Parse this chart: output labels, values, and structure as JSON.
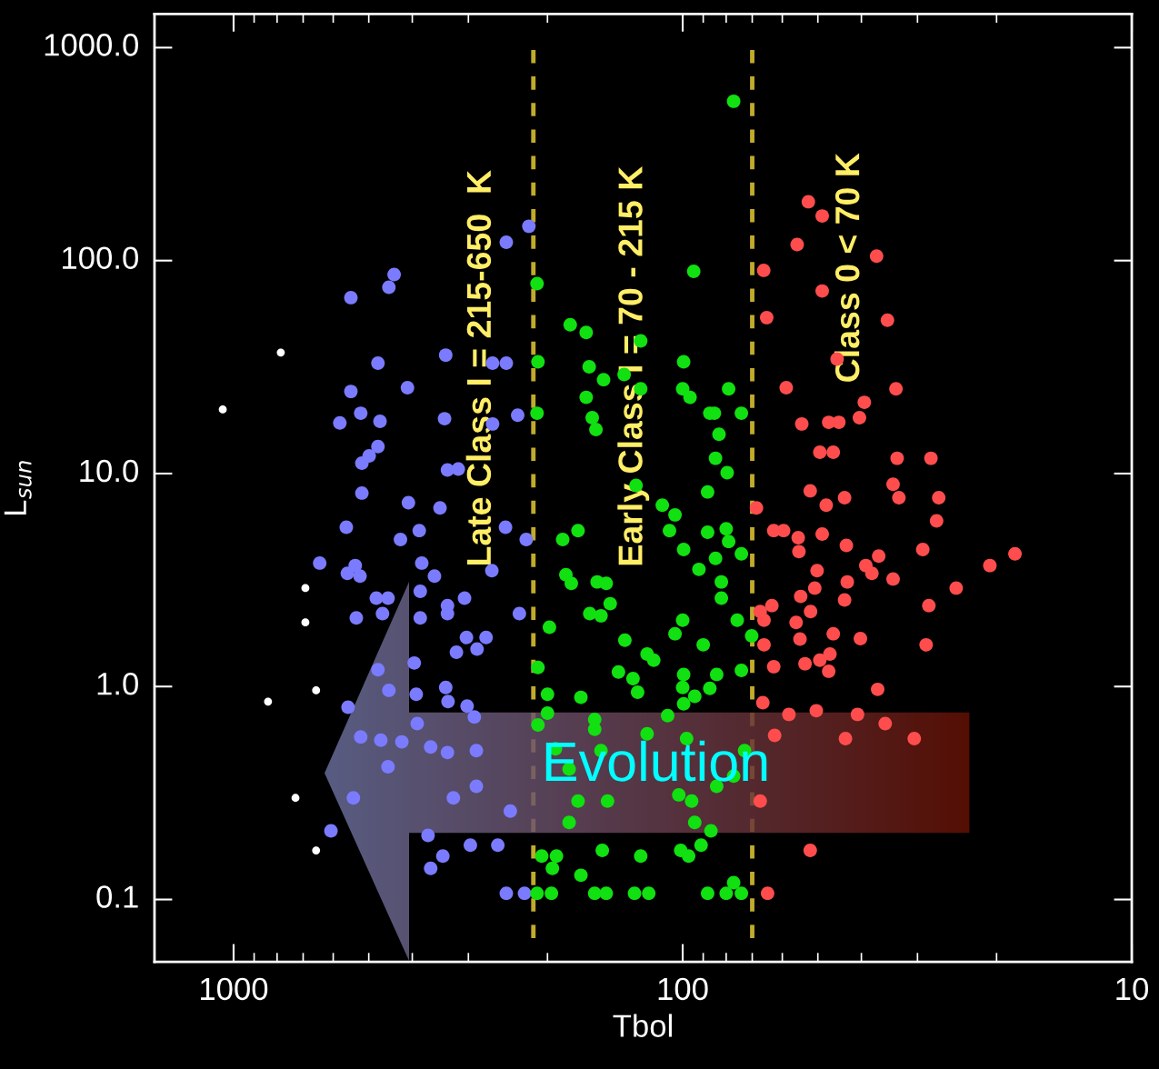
{
  "chart_data": {
    "type": "scatter",
    "xlabel": "Tbol",
    "ylabel": "L$_{sun}$",
    "log": "xy",
    "xlim": [
      1500,
      10
    ],
    "ylim": [
      0.051,
      1440
    ],
    "xticks": [
      1000,
      100,
      10
    ],
    "yticks": [
      {
        "value": 1000,
        "label": "1000.0"
      },
      {
        "value": 100,
        "label": "100.0"
      },
      {
        "value": 10,
        "label": "10.0"
      },
      {
        "value": 1,
        "label": "1.0"
      },
      {
        "value": 0.1,
        "label": "0.1"
      }
    ],
    "marker": "circle",
    "series": [
      {
        "color": "#ffffff",
        "x": [
          1057,
          785,
          692,
          692,
          655,
          838,
          728,
          655
        ],
        "values": [
          20,
          37,
          2.9,
          2.0,
          0.96,
          0.85,
          0.3,
          0.17
        ]
      },
      {
        "color": "#7b7bff",
        "x": [
          220,
          247,
          439,
          451,
          548,
          477,
          337,
          265,
          247,
          548,
          410,
          521,
          580,
          472,
          339,
          233,
          265,
          477,
          499,
          518,
          334,
          316,
          518,
          408,
          347,
          561,
          386,
          248,
          425,
          223,
          643,
          558,
          523,
          536,
          381,
          357,
          481,
          453,
          466,
          533,
          384,
          384,
          334,
          306,
          334,
          231,
          303,
          274,
          319,
          287,
          396,
          392,
          337,
          333,
          302,
          556,
          266,
          477,
          451,
          521,
          470,
          422,
          390,
          364,
          334,
          291,
          288,
          453,
          541,
          324,
          288,
          242,
          607,
          369,
          342,
          364,
          297,
          258,
          247,
          225
        ],
        "values": [
          145,
          122,
          86,
          75,
          67,
          33,
          36,
          33,
          33,
          24.3,
          25.3,
          19.2,
          17.3,
          17.6,
          18.1,
          18.8,
          17.1,
          13.4,
          12.1,
          11.2,
          10.4,
          10.5,
          8.1,
          7.3,
          6.9,
          5.6,
          5.4,
          5.6,
          4.9,
          4.9,
          3.8,
          3.4,
          3.3,
          3.7,
          3.8,
          3.3,
          2.6,
          2.6,
          2.2,
          2.1,
          2.8,
          2.1,
          2.4,
          2.6,
          2.2,
          2.2,
          1.7,
          1.7,
          1.45,
          1.5,
          1.29,
          0.92,
          0.99,
          0.85,
          0.81,
          0.8,
          3.5,
          1.2,
          0.96,
          0.58,
          0.56,
          0.55,
          0.67,
          0.52,
          0.49,
          0.72,
          0.5,
          0.42,
          0.3,
          0.3,
          0.34,
          0.26,
          0.21,
          0.2,
          0.16,
          0.14,
          0.18,
          0.18,
          0.107,
          0.107
        ]
      },
      {
        "color": "#11e011",
        "x": [
          77,
          94.5,
          211,
          178,
          164,
          124,
          210,
          161.5,
          150,
          135,
          99.5,
          164,
          124,
          100,
          96.3,
          79,
          211,
          159,
          156,
          87,
          85,
          74,
          83,
          84.5,
          79.6,
          127,
          88,
          111,
          104,
          171,
          185,
          107,
          88,
          80,
          99.5,
          79,
          92,
          84.5,
          74,
          182,
          177,
          155,
          148,
          145,
          161,
          152,
          198,
          82,
          82,
          100,
          104,
          75.6,
          70.2,
          134.5,
          90,
          120,
          116,
          210,
          139,
          129,
          99.5,
          100,
          84,
          74,
          87,
          94,
          126,
          200,
          168.5,
          99.5,
          200,
          108,
          157,
          157,
          210,
          120,
          98,
          192,
          179,
          152,
          72.8,
          77,
          84,
          102,
          95.5,
          171,
          147,
          179,
          94,
          86.5,
          91,
          206,
          191,
          151,
          124,
          101,
          97,
          195,
          168.5,
          77,
          211,
          196,
          157,
          148,
          128,
          119,
          88,
          80,
          74
        ],
        "values": [
          560,
          89,
          78,
          50,
          46,
          42,
          33.5,
          31.7,
          27.6,
          29.2,
          33.5,
          22.8,
          25,
          25,
          22.8,
          25,
          19.2,
          18.3,
          16.1,
          19.2,
          19.2,
          19.2,
          15.3,
          11.8,
          10.1,
          8.8,
          8.2,
          7.1,
          6.4,
          5.4,
          4.9,
          5.4,
          5.3,
          5.5,
          4.4,
          4.8,
          3.55,
          4.0,
          4.2,
          3.35,
          3.05,
          3.1,
          3.05,
          2.45,
          2.2,
          2.15,
          1.9,
          3.1,
          2.6,
          2.05,
          1.77,
          2.05,
          1.73,
          1.65,
          1.57,
          1.42,
          1.33,
          1.23,
          1.17,
          1.09,
          1.14,
          0.99,
          1.14,
          1.19,
          0.98,
          0.9,
          0.94,
          0.92,
          0.89,
          0.83,
          0.75,
          0.73,
          0.7,
          0.63,
          0.66,
          0.6,
          0.57,
          0.51,
          0.41,
          0.5,
          0.5,
          0.38,
          0.34,
          0.31,
          0.29,
          0.29,
          0.29,
          0.23,
          0.23,
          0.21,
          0.18,
          0.16,
          0.16,
          0.17,
          0.16,
          0.17,
          0.16,
          0.14,
          0.13,
          0.12,
          0.107,
          0.107,
          0.107,
          0.107,
          0.107,
          0.107,
          0.107,
          0.107,
          0.107
        ]
      },
      {
        "color": "#ff4d4d",
        "x": [
          52.5,
          48.9,
          55.6,
          37.0,
          66,
          48.9,
          65,
          35.0,
          45.3,
          58.8,
          33.5,
          39.4,
          54.3,
          47.3,
          44.9,
          40.4,
          49.5,
          46.2,
          33.3,
          28.0,
          34.0,
          52.0,
          43.6,
          33.0,
          26.9,
          47.9,
          27.2,
          68.5,
          62.7,
          59.6,
          55.3,
          48.9,
          43.2,
          29.2,
          18.2,
          20.7,
          55.1,
          36.6,
          39.1,
          37.9,
          50.2,
          34.0,
          43.0,
          24.6,
          50.8,
          54.6,
          43.6,
          63.3,
          28.3,
          67.2,
          65.9,
          51.9,
          55.9,
          46.2,
          40.2,
          54.8,
          28.7,
          65.9,
          47.0,
          53.4,
          49.5,
          47.3,
          62.7,
          36.8,
          66.3,
          58.0,
          50.4,
          40.8,
          35.4,
          62.4,
          43.4,
          30.5,
          67.2,
          52.0,
          64.7
        ],
        "values": [
          189,
          162,
          119,
          105,
          90,
          72,
          54,
          52.5,
          34.5,
          25.3,
          25,
          21.6,
          17.1,
          17.4,
          17.4,
          18.3,
          12.6,
          12.6,
          11.8,
          11.8,
          8.9,
          8.3,
          7.7,
          7.7,
          7.7,
          7.1,
          6.0,
          6.9,
          5.4,
          5.4,
          5.0,
          5.2,
          4.6,
          4.4,
          4.2,
          3.7,
          4.3,
          4.1,
          3.7,
          3.4,
          3.5,
          3.2,
          3.1,
          2.9,
          2.9,
          2.65,
          2.55,
          2.4,
          2.4,
          2.25,
          2.05,
          2.25,
          2.0,
          1.77,
          1.68,
          1.67,
          1.57,
          1.57,
          1.42,
          1.28,
          1.33,
          1.18,
          1.24,
          0.97,
          0.84,
          0.74,
          0.77,
          0.74,
          0.67,
          0.59,
          0.57,
          0.57,
          0.29,
          0.17,
          0.107
        ]
      }
    ],
    "ref_lines": [
      {
        "axis": "x",
        "value": 215,
        "label": null,
        "color": "#c0ab2b",
        "line_style": "dashed"
      },
      {
        "axis": "x",
        "value": 70,
        "label": null,
        "color": "#c0ab2b",
        "line_style": "dashed"
      }
    ],
    "annotations": [
      "Late Class I = 215-650  K",
      "Early Class I = 70 - 215 K",
      "Class 0 < 70 K",
      "Evolution"
    ]
  }
}
